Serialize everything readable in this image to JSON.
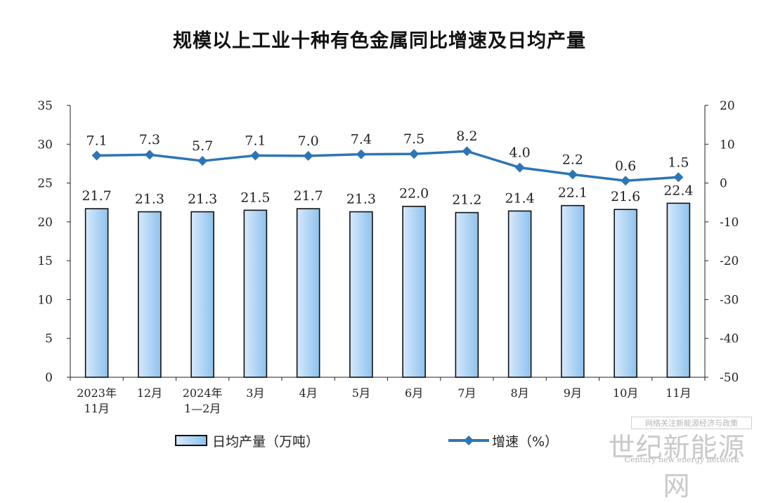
{
  "chart_data": {
    "type": "bar+line",
    "title": "规模以上工业十种有色金属同比增速及日均产量",
    "categories": [
      [
        "2023年",
        "11月"
      ],
      [
        "12月"
      ],
      [
        "2024年",
        "1—2月"
      ],
      [
        "3月"
      ],
      [
        "4月"
      ],
      [
        "5月"
      ],
      [
        "6月"
      ],
      [
        "7月"
      ],
      [
        "8月"
      ],
      [
        "9月"
      ],
      [
        "10月"
      ],
      [
        "11月"
      ]
    ],
    "series": [
      {
        "name": "日均产量（万吨）",
        "type": "bar",
        "axis": "left",
        "values": [
          21.7,
          21.3,
          21.3,
          21.5,
          21.7,
          21.3,
          22.0,
          21.2,
          21.4,
          22.1,
          21.6,
          22.4
        ]
      },
      {
        "name": "增速（%）",
        "type": "line",
        "axis": "right",
        "values": [
          7.1,
          7.3,
          5.7,
          7.1,
          7.0,
          7.4,
          7.5,
          8.2,
          4.0,
          2.2,
          0.6,
          1.5
        ]
      }
    ],
    "left_axis": {
      "min": 0,
      "max": 35,
      "step": 5
    },
    "right_axis": {
      "min": -50,
      "max": 20,
      "step": 10
    },
    "colors": {
      "bar_light": "#d7e9fb",
      "bar_dark": "#8ec2ee",
      "line": "#2e75b6"
    },
    "grid": false,
    "legend": "bottom"
  },
  "watermark": {
    "line1": "网络关注新能源经济与政策",
    "line2": "世纪新能源网",
    "line3": "Century new energy network"
  }
}
